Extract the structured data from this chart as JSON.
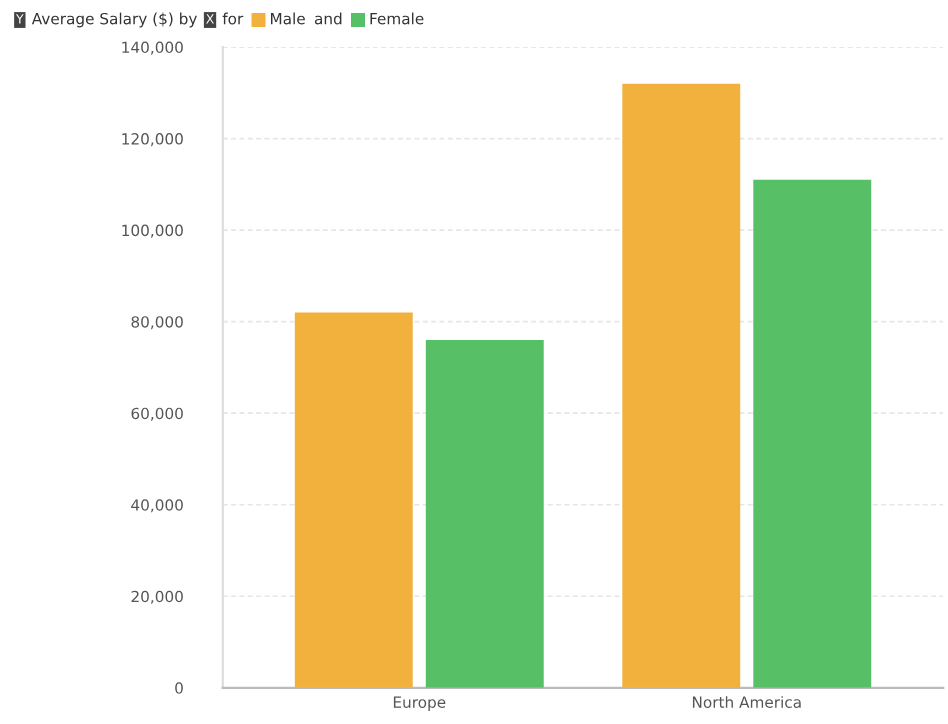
{
  "chart_data": {
    "type": "bar",
    "title": "Average Salary ($) by",
    "annotations": [
      "Y",
      "X",
      "for",
      "and"
    ],
    "categories": [
      "Europe",
      "North America"
    ],
    "series": [
      {
        "name": "Male",
        "color": "#f2b13c",
        "values": [
          82000,
          132000
        ]
      },
      {
        "name": "Female",
        "color": "#57bf65",
        "values": [
          76000,
          111000
        ]
      }
    ],
    "ylim": [
      0,
      140000
    ],
    "yticks": [
      0,
      {
        "value": 20000,
        "label": "20,000"
      },
      {
        "value": 40000,
        "label": "40,000"
      },
      {
        "value": 60000,
        "label": "60,000"
      },
      {
        "value": 80000,
        "label": "80,000"
      },
      {
        "value": 100000,
        "label": "100,000"
      },
      {
        "value": 120000,
        "label": "120,000"
      },
      {
        "value": 140000,
        "label": "140,000"
      }
    ],
    "grid": "y",
    "legend": "top left"
  }
}
